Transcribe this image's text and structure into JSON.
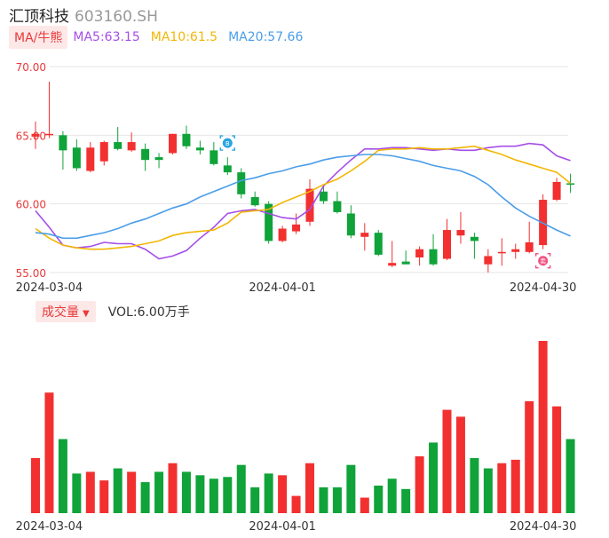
{
  "header": {
    "name": "汇顶科技",
    "code": "603160.SH"
  },
  "ma_legend": {
    "button_label": "MA/牛熊",
    "items": [
      {
        "label": "MA5:63.15",
        "color": "#a64ee8"
      },
      {
        "label": "MA10:61.5",
        "color": "#f2b705"
      },
      {
        "label": "MA20:57.66",
        "color": "#4b9de8"
      }
    ]
  },
  "volume_legend": {
    "button_label": "成交量",
    "caret": "▼",
    "value_text": "VOL:6.00万手"
  },
  "colors": {
    "up": "#f23030",
    "down": "#0fa339",
    "axis_text": "#e83a3a",
    "grid": "#e6e6e6"
  },
  "markers": [
    {
      "label": "B",
      "index": 14,
      "color": "#2aa3e0",
      "position": "above"
    },
    {
      "label": "卖",
      "index": 37,
      "color": "#f05080",
      "position": "below"
    }
  ],
  "chart_data": [
    {
      "type": "candlestick",
      "ylim": [
        55,
        70
      ],
      "yticks": [
        "55.00",
        "60.00",
        "65.00",
        "70.00"
      ],
      "xtick_labels": [
        {
          "label": "2024-03-04",
          "index": 1
        },
        {
          "label": "2024-04-01",
          "index": 18
        },
        {
          "label": "2024-04-30",
          "index": 37
        }
      ],
      "candles": [
        {
          "o": 64.9,
          "h": 66.0,
          "l": 64.0,
          "c": 65.1
        },
        {
          "o": 65.0,
          "h": 68.9,
          "l": 64.8,
          "c": 65.1
        },
        {
          "o": 65.0,
          "h": 65.3,
          "l": 62.5,
          "c": 63.9
        },
        {
          "o": 64.1,
          "h": 64.7,
          "l": 62.4,
          "c": 62.6
        },
        {
          "o": 62.4,
          "h": 64.5,
          "l": 62.3,
          "c": 64.1
        },
        {
          "o": 63.1,
          "h": 64.6,
          "l": 62.8,
          "c": 64.5
        },
        {
          "o": 64.5,
          "h": 65.6,
          "l": 63.9,
          "c": 64.0
        },
        {
          "o": 63.9,
          "h": 65.2,
          "l": 63.8,
          "c": 64.5
        },
        {
          "o": 64.0,
          "h": 64.4,
          "l": 62.4,
          "c": 63.2
        },
        {
          "o": 63.4,
          "h": 63.7,
          "l": 62.6,
          "c": 63.2
        },
        {
          "o": 63.7,
          "h": 65.1,
          "l": 63.6,
          "c": 65.1
        },
        {
          "o": 65.1,
          "h": 65.7,
          "l": 64.0,
          "c": 64.2
        },
        {
          "o": 64.1,
          "h": 64.6,
          "l": 63.6,
          "c": 63.9
        },
        {
          "o": 63.9,
          "h": 64.5,
          "l": 62.8,
          "c": 62.9
        },
        {
          "o": 62.8,
          "h": 63.4,
          "l": 62.1,
          "c": 62.3
        },
        {
          "o": 62.3,
          "h": 62.6,
          "l": 60.4,
          "c": 60.7
        },
        {
          "o": 60.5,
          "h": 60.9,
          "l": 59.8,
          "c": 59.9
        },
        {
          "o": 60.0,
          "h": 60.2,
          "l": 57.1,
          "c": 57.3
        },
        {
          "o": 57.3,
          "h": 58.4,
          "l": 57.2,
          "c": 58.2
        },
        {
          "o": 58.0,
          "h": 59.3,
          "l": 57.8,
          "c": 58.5
        },
        {
          "o": 58.7,
          "h": 61.8,
          "l": 58.4,
          "c": 61.1
        },
        {
          "o": 60.9,
          "h": 61.4,
          "l": 60.0,
          "c": 60.2
        },
        {
          "o": 60.2,
          "h": 60.9,
          "l": 59.3,
          "c": 59.4
        },
        {
          "o": 59.3,
          "h": 59.9,
          "l": 57.5,
          "c": 57.7
        },
        {
          "o": 57.6,
          "h": 58.6,
          "l": 56.6,
          "c": 57.9
        },
        {
          "o": 57.9,
          "h": 58.1,
          "l": 56.2,
          "c": 56.3
        },
        {
          "o": 55.5,
          "h": 57.3,
          "l": 55.4,
          "c": 55.7
        },
        {
          "o": 55.8,
          "h": 56.6,
          "l": 55.6,
          "c": 55.6
        },
        {
          "o": 56.1,
          "h": 56.9,
          "l": 55.5,
          "c": 56.7
        },
        {
          "o": 56.7,
          "h": 57.8,
          "l": 55.5,
          "c": 55.6
        },
        {
          "o": 56.0,
          "h": 58.9,
          "l": 55.9,
          "c": 58.1
        },
        {
          "o": 57.7,
          "h": 59.4,
          "l": 57.1,
          "c": 58.1
        },
        {
          "o": 57.6,
          "h": 57.9,
          "l": 56.0,
          "c": 57.3
        },
        {
          "o": 55.6,
          "h": 56.7,
          "l": 55.0,
          "c": 56.2
        },
        {
          "o": 56.4,
          "h": 57.5,
          "l": 55.5,
          "c": 56.5
        },
        {
          "o": 56.5,
          "h": 57.1,
          "l": 56.0,
          "c": 56.7
        },
        {
          "o": 56.5,
          "h": 58.7,
          "l": 56.4,
          "c": 57.2
        },
        {
          "o": 57.0,
          "h": 60.7,
          "l": 56.7,
          "c": 60.3
        },
        {
          "o": 60.3,
          "h": 61.9,
          "l": 60.2,
          "c": 61.6
        },
        {
          "o": 61.5,
          "h": 62.2,
          "l": 60.8,
          "c": 61.4
        }
      ],
      "ma_series": [
        {
          "name": "MA5",
          "color": "#a64ee8",
          "values": [
            59.5,
            58.3,
            57.0,
            56.8,
            56.9,
            57.2,
            57.1,
            57.1,
            56.7,
            56.0,
            56.2,
            56.6,
            57.5,
            58.3,
            59.3,
            59.5,
            59.6,
            59.3,
            59.0,
            58.9,
            59.6,
            61.3,
            62.3,
            63.2,
            64.0,
            64.0,
            64.1,
            64.1,
            64.0,
            63.9,
            64.0,
            63.9,
            63.9,
            64.1,
            64.2,
            64.2,
            64.4,
            64.3,
            63.5,
            63.15
          ]
        },
        {
          "name": "MA10",
          "color": "#f2b705",
          "values": [
            58.2,
            57.5,
            57.0,
            56.8,
            56.7,
            56.7,
            56.8,
            56.9,
            57.1,
            57.3,
            57.7,
            57.9,
            58.0,
            58.1,
            58.6,
            59.4,
            59.5,
            59.6,
            60.1,
            60.5,
            60.9,
            61.4,
            61.8,
            62.4,
            63.1,
            63.9,
            64.0,
            64.0,
            64.1,
            64.0,
            64.0,
            64.1,
            64.2,
            63.9,
            63.6,
            63.2,
            62.9,
            62.6,
            62.3,
            61.5
          ]
        },
        {
          "name": "MA20",
          "color": "#4b9de8",
          "values": [
            57.9,
            57.8,
            57.5,
            57.5,
            57.7,
            57.9,
            58.2,
            58.6,
            58.9,
            59.3,
            59.7,
            60.0,
            60.5,
            60.9,
            61.3,
            61.7,
            61.9,
            62.2,
            62.4,
            62.7,
            62.9,
            63.2,
            63.4,
            63.5,
            63.6,
            63.6,
            63.5,
            63.3,
            63.1,
            62.8,
            62.6,
            62.4,
            62.0,
            61.4,
            60.5,
            59.7,
            59.1,
            58.6,
            58.1,
            57.66
          ]
        }
      ]
    },
    {
      "type": "bar",
      "title": "成交量",
      "ylim": [
        0,
        100
      ],
      "values": [
        32,
        70,
        43,
        23,
        24,
        19,
        26,
        24,
        18,
        24,
        29,
        24,
        22,
        20,
        21,
        28,
        15,
        23,
        22,
        10,
        29,
        15,
        15,
        28,
        9,
        16,
        20,
        14,
        33,
        41,
        60,
        56,
        32,
        26,
        29,
        31,
        65,
        100,
        62,
        43
      ],
      "directions": [
        "up",
        "up",
        "down",
        "down",
        "up",
        "up",
        "down",
        "up",
        "down",
        "down",
        "up",
        "down",
        "down",
        "down",
        "down",
        "down",
        "down",
        "down",
        "up",
        "up",
        "up",
        "down",
        "down",
        "down",
        "up",
        "down",
        "down",
        "down",
        "up",
        "down",
        "up",
        "up",
        "down",
        "down",
        "up",
        "up",
        "up",
        "up",
        "up",
        "down"
      ],
      "xtick_labels": [
        {
          "label": "2024-03-04",
          "index": 1
        },
        {
          "label": "2024-04-01",
          "index": 18
        },
        {
          "label": "2024-04-30",
          "index": 37
        }
      ]
    }
  ]
}
